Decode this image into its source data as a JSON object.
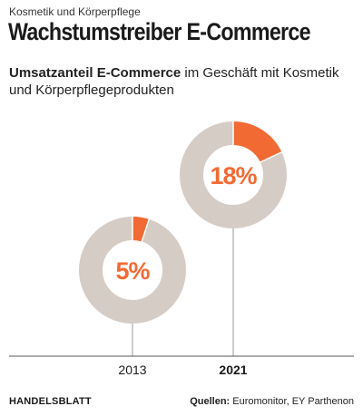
{
  "kicker": "Kosmetik und Körperpflege",
  "headline": "Wachstumstreiber E-Commerce",
  "subtitle_bold": "Umsatzanteil E-Commerce",
  "subtitle_rest": " im Geschäft mit Kosmetik und Körperpflegeprodukten",
  "colors": {
    "accent": "#f26a33",
    "ring": "#d5ccc6",
    "axis": "#555555",
    "stem": "#9a9a9a"
  },
  "chart_data": {
    "type": "pie",
    "variant": "donut",
    "unit": "%",
    "categories": [
      "2013",
      "2021"
    ],
    "values": [
      5,
      18
    ],
    "labels": [
      "5%",
      "18%"
    ],
    "highlight": "2021",
    "title": "Umsatzanteil E-Commerce im Geschäft mit Kosmetik und Körperpflegeprodukten"
  },
  "footer": {
    "brand": "HANDELSBLATT",
    "source_label": "Quellen:",
    "source_text": " Euromonitor, EY Parthenon"
  }
}
